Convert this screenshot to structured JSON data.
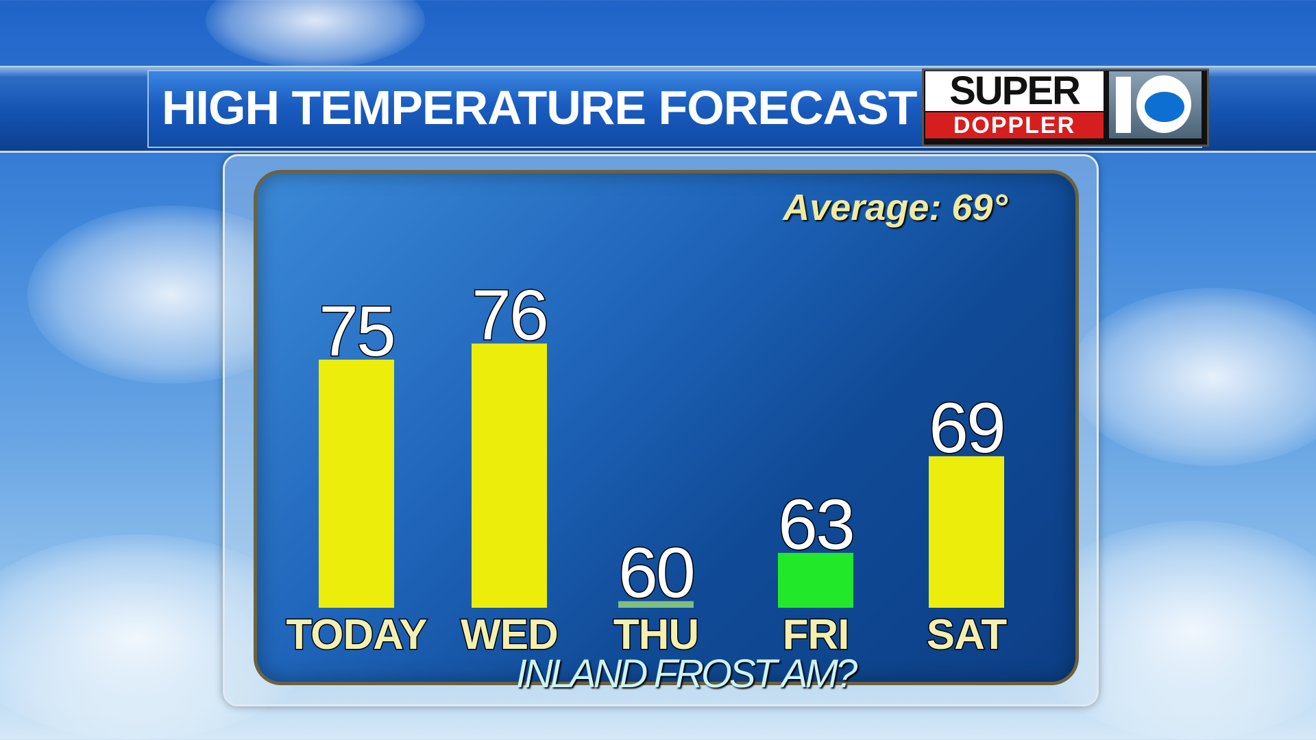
{
  "header": {
    "title": "HIGH TEMPERATURE FORECAST"
  },
  "logo": {
    "line1": "SUPER",
    "line2": "DOPPLER"
  },
  "average_label": "Average: 69°",
  "note": "INLAND FROST AM?",
  "colors": {
    "warm": "#eded0c",
    "cool_light": "#7fbf80",
    "cool_bright": "#22e82a"
  },
  "chart_data": {
    "type": "bar",
    "categories": [
      "TODAY",
      "WED",
      "THU",
      "FRI",
      "SAT"
    ],
    "values": [
      75,
      76,
      60,
      63,
      69
    ],
    "bar_colors": [
      "#eded0c",
      "#eded0c",
      "#7fbf80",
      "#22e82a",
      "#eded0c"
    ],
    "title": "HIGH TEMPERATURE FORECAST",
    "xlabel": "",
    "ylabel": "",
    "grid": false
  }
}
